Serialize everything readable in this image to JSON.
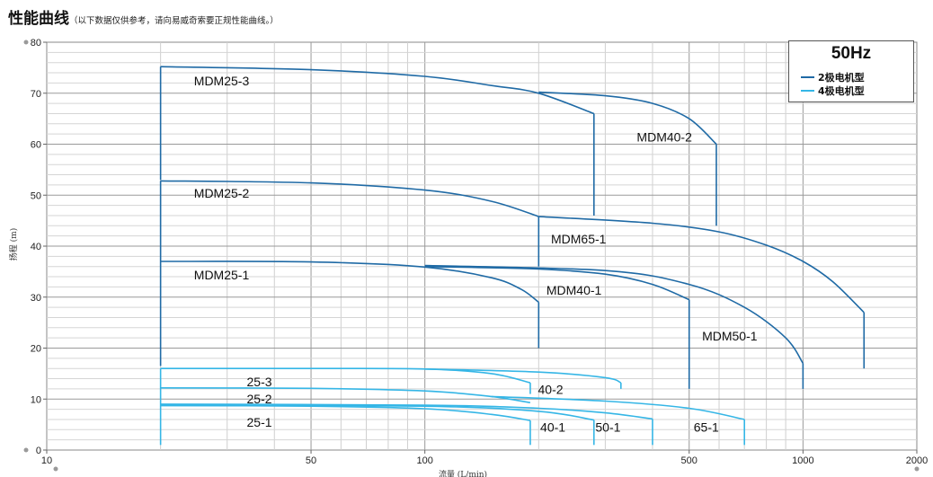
{
  "header": {
    "title": "性能曲线",
    "note": "（以下数据仅供参考，请向易威奇索要正规性能曲线。）"
  },
  "legend": {
    "title": "50Hz",
    "items": [
      {
        "label": "2极电机型",
        "color": "#1f6aa5"
      },
      {
        "label": "4极电机型",
        "color": "#35b6e6"
      }
    ]
  },
  "chart_data": {
    "type": "line",
    "title": "性能曲线",
    "xlabel": "流量 (L/min)",
    "ylabel": "扬程 (m)",
    "xscale": "log",
    "xlim": [
      10,
      2000
    ],
    "ylim": [
      0,
      80
    ],
    "xticks": [
      10,
      50,
      100,
      500,
      1000,
      2000
    ],
    "yticks": [
      0,
      10,
      20,
      30,
      40,
      50,
      60,
      70,
      80
    ],
    "grid": true,
    "legend_position": "top-right",
    "series": [
      {
        "name": "MDM25-3",
        "motor": "2极电机型",
        "x": [
          20,
          50,
          100,
          150,
          200,
          280
        ],
        "y": [
          75.2,
          74.6,
          73.3,
          71.5,
          70.0,
          66.0
        ]
      },
      {
        "name": "MDM40-2",
        "motor": "2极电机型",
        "x": [
          200,
          300,
          400,
          500,
          590
        ],
        "y": [
          70.2,
          69.5,
          68.0,
          65.0,
          60.0
        ]
      },
      {
        "name": "MDM25-2",
        "motor": "2极电机型",
        "x": [
          20,
          50,
          100,
          150,
          200
        ],
        "y": [
          52.8,
          52.4,
          51.0,
          48.8,
          45.8
        ]
      },
      {
        "name": "MDM65-1",
        "motor": "2极电机型",
        "x": [
          200,
          400,
          600,
          800,
          1000,
          1200,
          1450
        ],
        "y": [
          45.8,
          44.5,
          42.8,
          40.2,
          37.0,
          33.0,
          27.0
        ]
      },
      {
        "name": "MDM25-1",
        "motor": "2极电机型",
        "x": [
          20,
          50,
          100,
          150,
          180,
          200
        ],
        "y": [
          37.0,
          36.9,
          35.9,
          33.8,
          31.5,
          29.0
        ]
      },
      {
        "name": "MDM40-1",
        "motor": "2极电机型",
        "x": [
          100,
          200,
          300,
          400,
          500
        ],
        "y": [
          36.0,
          35.5,
          34.5,
          32.5,
          29.5
        ]
      },
      {
        "name": "MDM50-1",
        "motor": "2极电机型",
        "x": [
          100,
          300,
          500,
          700,
          900,
          1000
        ],
        "y": [
          36.2,
          35.2,
          32.5,
          28.0,
          22.0,
          17.0
        ]
      },
      {
        "name": "25-3",
        "motor": "4极电机型",
        "x": [
          20,
          50,
          100,
          150,
          190
        ],
        "y": [
          16.0,
          16.0,
          15.9,
          15.0,
          13.2
        ]
      },
      {
        "name": "40-2",
        "motor": "4极电机型",
        "x": [
          100,
          200,
          300,
          330
        ],
        "y": [
          15.9,
          15.3,
          14.2,
          13.2
        ]
      },
      {
        "name": "25-2",
        "motor": "4极电机型",
        "x": [
          20,
          50,
          100,
          150,
          190
        ],
        "y": [
          12.2,
          12.1,
          11.6,
          10.5,
          9.3
        ]
      },
      {
        "name": "65-1",
        "motor": "4极电机型",
        "x": [
          150,
          300,
          500,
          700
        ],
        "y": [
          10.5,
          9.6,
          8.2,
          6.0
        ]
      },
      {
        "name": "25-1",
        "motor": "4极电机型",
        "x": [
          20,
          50,
          100,
          150,
          190
        ],
        "y": [
          8.7,
          8.6,
          8.1,
          7.0,
          5.8
        ]
      },
      {
        "name": "40-1",
        "motor": "4极电机型",
        "x": [
          20,
          100,
          200,
          280
        ],
        "y": [
          8.9,
          8.6,
          7.6,
          5.9
        ]
      },
      {
        "name": "50-1",
        "motor": "4极电机型",
        "x": [
          20,
          100,
          200,
          300,
          400
        ],
        "y": [
          9.0,
          8.8,
          8.2,
          7.3,
          6.1
        ]
      }
    ],
    "drop_lines": [
      {
        "series": "MDM25-3",
        "x": 20,
        "y_from": 53.0,
        "y_to": 75.2,
        "motor": "2极电机型"
      },
      {
        "series": "MDM25-3",
        "x": 280,
        "y_from": 46.0,
        "y_to": 66.0,
        "motor": "2极电机型"
      },
      {
        "series": "MDM40-2",
        "x": 590,
        "y_from": 44.0,
        "y_to": 60.0,
        "motor": "2极电机型"
      },
      {
        "series": "MDM25-2",
        "x": 20,
        "y_from": 16.5,
        "y_to": 52.8,
        "motor": "2极电机型"
      },
      {
        "series": "MDM65-1",
        "x": 200,
        "y_from": 36.0,
        "y_to": 45.8,
        "motor": "2极电机型"
      },
      {
        "series": "MDM65-1",
        "x": 1450,
        "y_from": 16.0,
        "y_to": 27.0,
        "motor": "2极电机型"
      },
      {
        "series": "MDM25-1",
        "x": 200,
        "y_from": 20.0,
        "y_to": 29.0,
        "motor": "2极电机型"
      },
      {
        "series": "MDM40-1",
        "x": 500,
        "y_from": 12.0,
        "y_to": 29.5,
        "motor": "2极电机型"
      },
      {
        "series": "MDM50-1",
        "x": 1000,
        "y_from": 12.0,
        "y_to": 17.0,
        "motor": "2极电机型"
      },
      {
        "series": "25-3",
        "x": 20,
        "y_from": 1.0,
        "y_to": 16.0,
        "motor": "4极电机型"
      },
      {
        "series": "25-3",
        "x": 190,
        "y_from": 11.0,
        "y_to": 13.2,
        "motor": "4极电机型"
      },
      {
        "series": "40-2",
        "x": 330,
        "y_from": 12.0,
        "y_to": 13.2,
        "motor": "4极电机型"
      },
      {
        "series": "25-1",
        "x": 190,
        "y_from": 1.0,
        "y_to": 5.8,
        "motor": "4极电机型"
      },
      {
        "series": "40-1",
        "x": 280,
        "y_from": 1.0,
        "y_to": 5.9,
        "motor": "4极电机型"
      },
      {
        "series": "50-1",
        "x": 400,
        "y_from": 1.0,
        "y_to": 6.1,
        "motor": "4极电机型"
      },
      {
        "series": "65-1",
        "x": 700,
        "y_from": 1.0,
        "y_to": 6.0,
        "motor": "4极电机型"
      }
    ],
    "curve_labels": [
      {
        "text": "MDM25-3",
        "x": 29,
        "y": 71.5
      },
      {
        "text": "MDM40-2",
        "x": 430,
        "y": 60.5
      },
      {
        "text": "MDM25-2",
        "x": 29,
        "y": 49.5
      },
      {
        "text": "MDM65-1",
        "x": 255,
        "y": 40.5
      },
      {
        "text": "MDM25-1",
        "x": 29,
        "y": 33.5
      },
      {
        "text": "MDM40-1",
        "x": 248,
        "y": 30.5
      },
      {
        "text": "MDM50-1",
        "x": 640,
        "y": 21.5
      },
      {
        "text": "25-3",
        "x": 36.5,
        "y": 12.5
      },
      {
        "text": "25-2",
        "x": 36.5,
        "y": 9.2
      },
      {
        "text": "25-1",
        "x": 36.5,
        "y": 4.6
      },
      {
        "text": "40-2",
        "x": 215,
        "y": 11.0
      },
      {
        "text": "40-1",
        "x": 218,
        "y": 3.6
      },
      {
        "text": "50-1",
        "x": 305,
        "y": 3.6
      },
      {
        "text": "65-1",
        "x": 555,
        "y": 3.6
      }
    ]
  }
}
